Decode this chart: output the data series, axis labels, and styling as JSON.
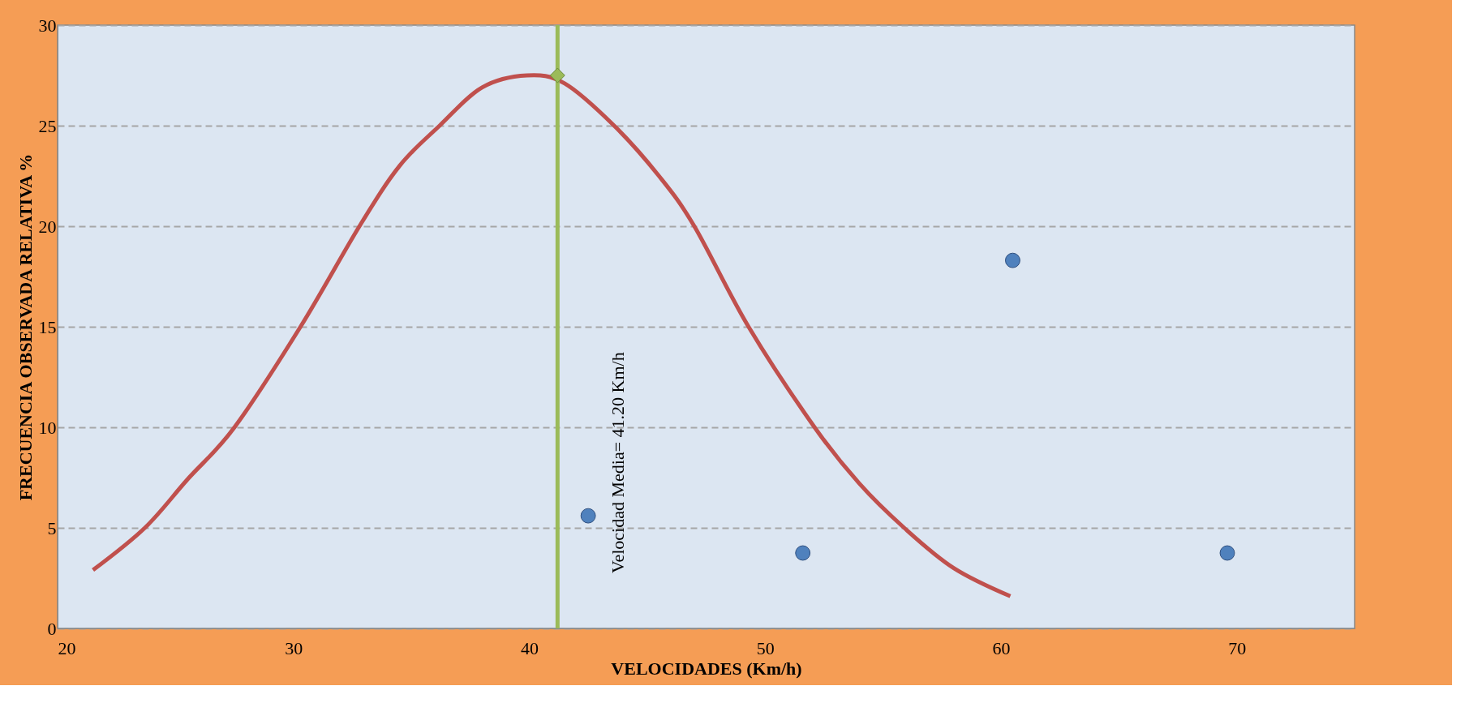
{
  "chart_data": {
    "type": "scatter",
    "xlabel": "VELOCIDADES (Km/h)",
    "ylabel": "FRECUENCIA OBSERVADA RELATIVA %",
    "xlim": [
      20,
      75
    ],
    "xticks": [
      20,
      30,
      40,
      50,
      60,
      70
    ],
    "ylim": [
      0,
      30
    ],
    "yticks": [
      0,
      5,
      10,
      15,
      20,
      25,
      30
    ],
    "grid": "y",
    "series": [
      {
        "type": "line",
        "color": "#c0504d",
        "line_style": "solid",
        "marker": "none",
        "x": [
          21.5,
          23.7,
          25.5,
          27.5,
          30.3,
          32.8,
          34.5,
          36.2,
          38,
          39.9,
          41.5,
          43.6,
          45.5,
          47,
          49.3,
          52.1,
          54,
          55.9,
          58,
          60.4
        ],
        "values": [
          2.9,
          5,
          7.4,
          10,
          15,
          20,
          23,
          25,
          26.9,
          27.5,
          27.1,
          25,
          22.5,
          20,
          15,
          10,
          7.2,
          5,
          3,
          1.6
        ]
      },
      {
        "color": "#4f81bd",
        "marker": "circle",
        "x": [
          42.5,
          51.6,
          60.5,
          69.6
        ],
        "values": [
          5.6,
          3.75,
          18.3,
          3.75
        ]
      },
      {
        "type": "scatter",
        "color": "#9bbb59",
        "marker": "diamond",
        "x": [
          41.2
        ],
        "values": [
          27.5
        ]
      }
    ],
    "ref_lines": [
      {
        "axis": "x",
        "value": 41.2,
        "label": "Velocidad Media= 41.20 Km/h",
        "color": "#9bbb59",
        "line_style": "solid"
      }
    ]
  }
}
